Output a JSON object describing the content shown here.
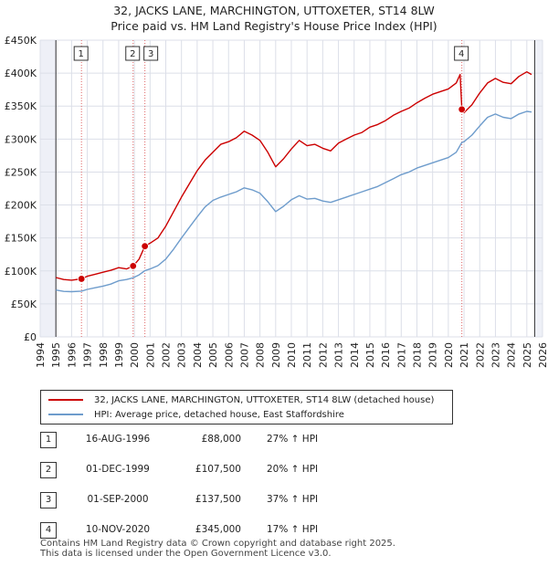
{
  "chart_data": {
    "type": "line",
    "title": "32, JACKS LANE, MARCHINGTON, UTTOXETER, ST14 8LW",
    "subtitle": "Price paid vs. HM Land Registry's House Price Index (HPI)",
    "xlim": [
      1994,
      2026
    ],
    "ylim": [
      0,
      450000
    ],
    "x_ticks": [
      "1994",
      "1995",
      "1996",
      "1997",
      "1998",
      "1999",
      "2000",
      "2001",
      "2002",
      "2003",
      "2004",
      "2005",
      "2006",
      "2007",
      "2008",
      "2009",
      "2010",
      "2011",
      "2012",
      "2013",
      "2014",
      "2015",
      "2016",
      "2017",
      "2018",
      "2019",
      "2020",
      "2021",
      "2022",
      "2023",
      "2024",
      "2025",
      "2026"
    ],
    "y_ticks": [
      {
        "value": 0,
        "label": "£0"
      },
      {
        "value": 50000,
        "label": "£50K"
      },
      {
        "value": 100000,
        "label": "£100K"
      },
      {
        "value": 150000,
        "label": "£150K"
      },
      {
        "value": 200000,
        "label": "£200K"
      },
      {
        "value": 250000,
        "label": "£250K"
      },
      {
        "value": 300000,
        "label": "£300K"
      },
      {
        "value": 350000,
        "label": "£350K"
      },
      {
        "value": 400000,
        "label": "£400K"
      },
      {
        "value": 450000,
        "label": "£450K"
      }
    ],
    "data_window": [
      1995.0,
      2025.5
    ],
    "series": [
      {
        "name": "32, JACKS LANE, MARCHINGTON, UTTOXETER, ST14 8LW (detached house)",
        "color": "#cc0000",
        "points": [
          [
            1995.0,
            90000
          ],
          [
            1995.5,
            87000
          ],
          [
            1996.0,
            86000
          ],
          [
            1996.63,
            88000
          ],
          [
            1997.0,
            92000
          ],
          [
            1997.5,
            95000
          ],
          [
            1998.0,
            98000
          ],
          [
            1998.5,
            101000
          ],
          [
            1999.0,
            105000
          ],
          [
            1999.5,
            103000
          ],
          [
            1999.92,
            107500
          ],
          [
            2000.3,
            118000
          ],
          [
            2000.67,
            137500
          ],
          [
            2001.0,
            142000
          ],
          [
            2001.5,
            150000
          ],
          [
            2002.0,
            168000
          ],
          [
            2002.5,
            190000
          ],
          [
            2003.0,
            212000
          ],
          [
            2003.5,
            232000
          ],
          [
            2004.0,
            252000
          ],
          [
            2004.5,
            268000
          ],
          [
            2005.0,
            280000
          ],
          [
            2005.5,
            292000
          ],
          [
            2006.0,
            296000
          ],
          [
            2006.5,
            302000
          ],
          [
            2007.0,
            312000
          ],
          [
            2007.5,
            306000
          ],
          [
            2008.0,
            298000
          ],
          [
            2008.5,
            280000
          ],
          [
            2009.0,
            258000
          ],
          [
            2009.5,
            270000
          ],
          [
            2010.0,
            285000
          ],
          [
            2010.5,
            298000
          ],
          [
            2011.0,
            290000
          ],
          [
            2011.5,
            292000
          ],
          [
            2012.0,
            286000
          ],
          [
            2012.5,
            282000
          ],
          [
            2013.0,
            294000
          ],
          [
            2013.5,
            300000
          ],
          [
            2014.0,
            306000
          ],
          [
            2014.5,
            310000
          ],
          [
            2015.0,
            318000
          ],
          [
            2015.5,
            322000
          ],
          [
            2016.0,
            328000
          ],
          [
            2016.5,
            336000
          ],
          [
            2017.0,
            342000
          ],
          [
            2017.5,
            347000
          ],
          [
            2018.0,
            355000
          ],
          [
            2018.5,
            362000
          ],
          [
            2019.0,
            368000
          ],
          [
            2019.5,
            372000
          ],
          [
            2020.0,
            376000
          ],
          [
            2020.5,
            385000
          ],
          [
            2020.75,
            398000
          ],
          [
            2020.86,
            345000
          ],
          [
            2021.0,
            340000
          ],
          [
            2021.5,
            352000
          ],
          [
            2022.0,
            370000
          ],
          [
            2022.5,
            385000
          ],
          [
            2023.0,
            392000
          ],
          [
            2023.5,
            386000
          ],
          [
            2024.0,
            384000
          ],
          [
            2024.5,
            395000
          ],
          [
            2025.0,
            402000
          ],
          [
            2025.3,
            398000
          ]
        ]
      },
      {
        "name": "HPI: Average price, detached house, East Staffordshire",
        "color": "#6e9ccc",
        "points": [
          [
            1995.0,
            71000
          ],
          [
            1995.5,
            69000
          ],
          [
            1996.0,
            68500
          ],
          [
            1996.63,
            69300
          ],
          [
            1997.0,
            72000
          ],
          [
            1997.5,
            74500
          ],
          [
            1998.0,
            77000
          ],
          [
            1998.5,
            80000
          ],
          [
            1999.0,
            85000
          ],
          [
            1999.5,
            87000
          ],
          [
            1999.92,
            89600
          ],
          [
            2000.3,
            94000
          ],
          [
            2000.67,
            100400
          ],
          [
            2001.0,
            103000
          ],
          [
            2001.5,
            108000
          ],
          [
            2002.0,
            118000
          ],
          [
            2002.5,
            133000
          ],
          [
            2003.0,
            150000
          ],
          [
            2003.5,
            166000
          ],
          [
            2004.0,
            182000
          ],
          [
            2004.5,
            197000
          ],
          [
            2005.0,
            207000
          ],
          [
            2005.5,
            212000
          ],
          [
            2006.0,
            216000
          ],
          [
            2006.5,
            220000
          ],
          [
            2007.0,
            226000
          ],
          [
            2007.5,
            223000
          ],
          [
            2008.0,
            218000
          ],
          [
            2008.5,
            205000
          ],
          [
            2009.0,
            190000
          ],
          [
            2009.5,
            198000
          ],
          [
            2010.0,
            208000
          ],
          [
            2010.5,
            214000
          ],
          [
            2011.0,
            209000
          ],
          [
            2011.5,
            210000
          ],
          [
            2012.0,
            206000
          ],
          [
            2012.5,
            204000
          ],
          [
            2013.0,
            208000
          ],
          [
            2013.5,
            212000
          ],
          [
            2014.0,
            216000
          ],
          [
            2014.5,
            220000
          ],
          [
            2015.0,
            224000
          ],
          [
            2015.5,
            228000
          ],
          [
            2016.0,
            234000
          ],
          [
            2016.5,
            240000
          ],
          [
            2017.0,
            246000
          ],
          [
            2017.5,
            250000
          ],
          [
            2018.0,
            256000
          ],
          [
            2018.5,
            260000
          ],
          [
            2019.0,
            264000
          ],
          [
            2019.5,
            268000
          ],
          [
            2020.0,
            272000
          ],
          [
            2020.5,
            280000
          ],
          [
            2020.86,
            294900
          ],
          [
            2021.0,
            296000
          ],
          [
            2021.5,
            306000
          ],
          [
            2022.0,
            320000
          ],
          [
            2022.5,
            333000
          ],
          [
            2023.0,
            338000
          ],
          [
            2023.5,
            333000
          ],
          [
            2024.0,
            331000
          ],
          [
            2024.5,
            338000
          ],
          [
            2025.0,
            342000
          ],
          [
            2025.3,
            341000
          ]
        ]
      }
    ],
    "events": [
      {
        "label": "1",
        "x": 1996.63,
        "value": 88000
      },
      {
        "label": "2",
        "x": 1999.92,
        "value": 107500
      },
      {
        "label": "3",
        "x": 2000.67,
        "value": 137500
      },
      {
        "label": "4",
        "x": 2020.86,
        "value": 345000
      }
    ]
  },
  "legend": {
    "items": [
      {
        "label": "32, JACKS LANE, MARCHINGTON, UTTOXETER, ST14 8LW (detached house)",
        "color": "#cc0000"
      },
      {
        "label": "HPI: Average price, detached house, East Staffordshire",
        "color": "#6e9ccc"
      }
    ]
  },
  "events_table": [
    {
      "num": "1",
      "date": "16-AUG-1996",
      "price": "£88,000",
      "hpi": "27% ↑ HPI"
    },
    {
      "num": "2",
      "date": "01-DEC-1999",
      "price": "£107,500",
      "hpi": "20% ↑ HPI"
    },
    {
      "num": "3",
      "date": "01-SEP-2000",
      "price": "£137,500",
      "hpi": "37% ↑ HPI"
    },
    {
      "num": "4",
      "date": "10-NOV-2020",
      "price": "£345,000",
      "hpi": "17% ↑ HPI"
    }
  ],
  "footer": {
    "line1": "Contains HM Land Registry data © Crown copyright and database right 2025.",
    "line2": "This data is licensed under the Open Government Licence v3.0."
  }
}
